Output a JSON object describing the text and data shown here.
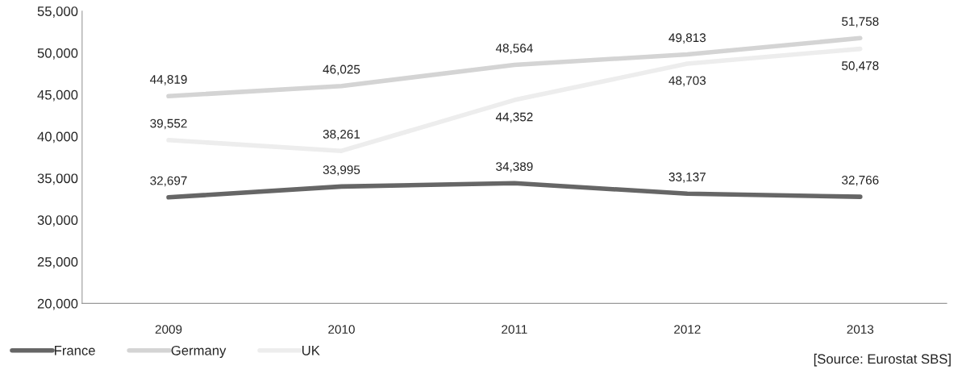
{
  "chart_data": {
    "type": "line",
    "categories": [
      "2009",
      "2010",
      "2011",
      "2012",
      "2013"
    ],
    "series": [
      {
        "name": "France",
        "color": "#666666",
        "values": [
          32697,
          33995,
          34389,
          33137,
          32766
        ],
        "value_labels": [
          "32,697",
          "33,995",
          "34,389",
          "33,137",
          "32,766"
        ]
      },
      {
        "name": "Germany",
        "color": "#d4d4d4",
        "values": [
          44819,
          46025,
          48564,
          49813,
          51758
        ],
        "value_labels": [
          "44,819",
          "46,025",
          "48,564",
          "49,813",
          "51,758"
        ]
      },
      {
        "name": "UK",
        "color": "#ededed",
        "values": [
          39552,
          38261,
          44352,
          48703,
          50478
        ],
        "value_labels": [
          "39,552",
          "38,261",
          "44,352",
          "48,703",
          "50,478"
        ]
      }
    ],
    "ylim": [
      20000,
      55000
    ],
    "yticks": [
      {
        "value": 20000,
        "label": "20,000"
      },
      {
        "value": 25000,
        "label": "25,000"
      },
      {
        "value": 30000,
        "label": "30,000"
      },
      {
        "value": 35000,
        "label": "35,000"
      },
      {
        "value": 40000,
        "label": "40,000"
      },
      {
        "value": 45000,
        "label": "45,000"
      },
      {
        "value": 50000,
        "label": "50,000"
      },
      {
        "value": 55000,
        "label": "55,000"
      }
    ],
    "grid": false,
    "legend": "bottom left",
    "marker": "none",
    "line_style": "solid",
    "annotations": [
      "[Source: Eurostat SBS]"
    ]
  }
}
